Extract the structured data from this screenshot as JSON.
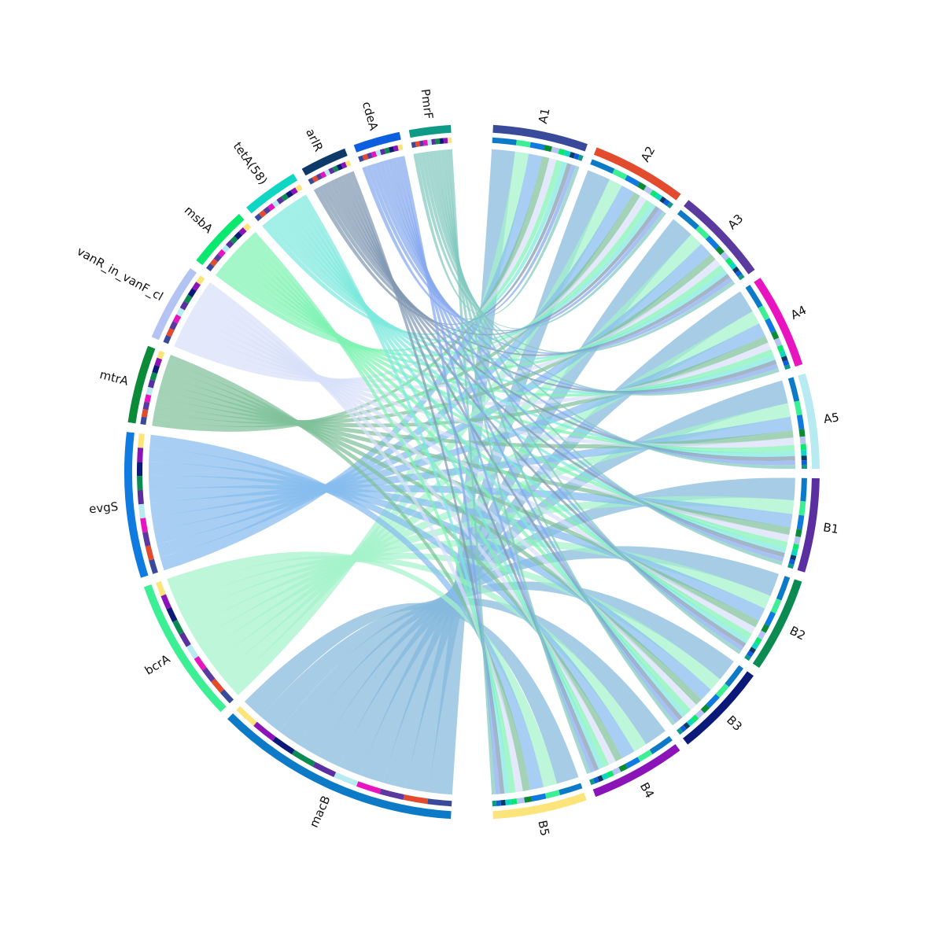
{
  "chart_data": {
    "type": "chord",
    "title": "",
    "sectors": [
      {
        "name": "A1",
        "color": "#3a4a9a",
        "group": "sample"
      },
      {
        "name": "A2",
        "color": "#e24b2e",
        "group": "sample"
      },
      {
        "name": "A3",
        "color": "#5a3a9e",
        "group": "sample"
      },
      {
        "name": "A4",
        "color": "#e814c0",
        "group": "sample"
      },
      {
        "name": "A5",
        "color": "#b8eaf2",
        "group": "sample"
      },
      {
        "name": "B1",
        "color": "#5a2fa0",
        "group": "sample"
      },
      {
        "name": "B2",
        "color": "#0b8a52",
        "group": "sample"
      },
      {
        "name": "B3",
        "color": "#0b1a78",
        "group": "sample"
      },
      {
        "name": "B4",
        "color": "#8a14b8",
        "group": "sample"
      },
      {
        "name": "B5",
        "color": "#fbe57a",
        "group": "sample"
      },
      {
        "name": "macB",
        "color": "#0c7ac6",
        "group": "gene",
        "ribbon_color": "#85b9dd"
      },
      {
        "name": "bcrA",
        "color": "#3cef94",
        "group": "gene",
        "ribbon_color": "#a3f3cb"
      },
      {
        "name": "evgS",
        "color": "#0f7ae0",
        "group": "gene",
        "ribbon_color": "#86bcef"
      },
      {
        "name": "mtrA",
        "color": "#0b8a37",
        "group": "gene",
        "ribbon_color": "#7fc19a"
      },
      {
        "name": "vanR_in_vanF_cl",
        "color": "#b4c4f2",
        "group": "gene",
        "ribbon_color": "#d8e0fa"
      },
      {
        "name": "msbA",
        "color": "#0be870",
        "group": "gene",
        "ribbon_color": "#7ff3b3"
      },
      {
        "name": "tetA(58)",
        "color": "#0ed6c2",
        "group": "gene",
        "ribbon_color": "#7de9dd"
      },
      {
        "name": "arlR",
        "color": "#0e3a6a",
        "group": "gene",
        "ribbon_color": "#8199b3"
      },
      {
        "name": "cdeA",
        "color": "#0e5ee0",
        "group": "gene",
        "ribbon_color": "#87a9ee"
      },
      {
        "name": "PmrF",
        "color": "#0e9a86",
        "group": "gene",
        "ribbon_color": "#82c9bf"
      }
    ],
    "sample_order": [
      "A1",
      "A2",
      "A3",
      "A4",
      "A5",
      "B1",
      "B2",
      "B3",
      "B4",
      "B5"
    ],
    "gene_order": [
      "macB",
      "bcrA",
      "evgS",
      "mtrA",
      "vanR_in_vanF_cl",
      "msbA",
      "tetA(58)",
      "arlR",
      "cdeA",
      "PmrF"
    ],
    "links": [
      {
        "gene": "macB",
        "values": [
          2.4,
          2.4,
          2.4,
          2.4,
          2.4,
          2.3,
          2.4,
          2.3,
          2.4,
          2.3
        ]
      },
      {
        "gene": "bcrA",
        "values": [
          1.4,
          1.4,
          1.4,
          1.4,
          1.4,
          1.4,
          1.4,
          1.4,
          1.4,
          1.4
        ]
      },
      {
        "gene": "evgS",
        "values": [
          1.4,
          1.4,
          1.4,
          1.4,
          1.4,
          1.4,
          1.4,
          1.4,
          1.4,
          1.4
        ]
      },
      {
        "gene": "mtrA",
        "values": [
          0.75,
          0.75,
          0.75,
          0.75,
          0.75,
          0.75,
          0.75,
          0.75,
          0.75,
          0.75
        ]
      },
      {
        "gene": "vanR_in_vanF_cl",
        "values": [
          0.75,
          0.75,
          0.75,
          0.75,
          0.75,
          0.75,
          0.75,
          0.75,
          0.75,
          0.75
        ]
      },
      {
        "gene": "msbA",
        "values": [
          0.6,
          0.6,
          0.6,
          0.6,
          0.6,
          0.6,
          0.6,
          0.6,
          0.6,
          0.6
        ]
      },
      {
        "gene": "tetA(58)",
        "values": [
          0.55,
          0.55,
          0.55,
          0.55,
          0.55,
          0.55,
          0.55,
          0.55,
          0.55,
          0.55
        ]
      },
      {
        "gene": "arlR",
        "values": [
          0.45,
          0.45,
          0.45,
          0.45,
          0.45,
          0.45,
          0.45,
          0.45,
          0.45,
          0.45
        ]
      },
      {
        "gene": "cdeA",
        "values": [
          0.45,
          0.45,
          0.45,
          0.45,
          0.45,
          0.45,
          0.45,
          0.45,
          0.45,
          0.45
        ]
      },
      {
        "gene": "PmrF",
        "values": [
          0.4,
          0.4,
          0.4,
          0.4,
          0.4,
          0.4,
          0.4,
          0.4,
          0.4,
          0.4
        ]
      }
    ]
  }
}
